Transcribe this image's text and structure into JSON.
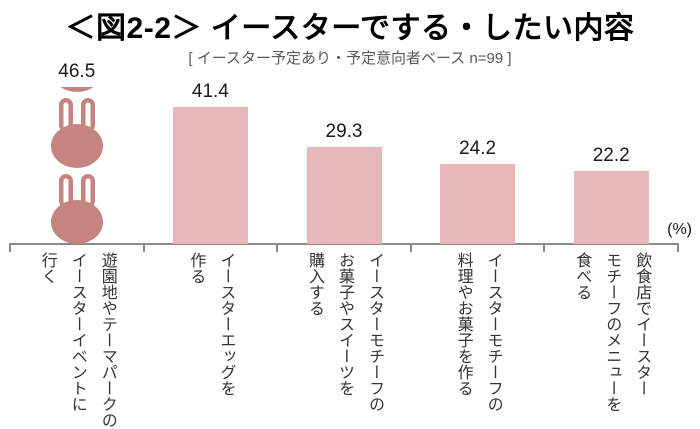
{
  "header": {
    "title": "＜図2-2＞ イースターでする・したい内容",
    "subtitle": "[ イースター予定あり・予定意向者ベース n=99 ]"
  },
  "chart_data": {
    "type": "bar",
    "title": "＜図2-2＞ イースターでする・したい内容",
    "subtitle": "[ イースター予定あり・予定意向者ベース n=99 ]",
    "unit_label": "(%)",
    "legend": "none",
    "y_axis_visible": false,
    "ylim": [
      0,
      50
    ],
    "categories": [
      {
        "label": "遊園地やテーマパークのイースターイベントに行く",
        "lines": [
          "遊園地やテーマパークの",
          "イースターイベントに",
          "行く"
        ]
      },
      {
        "label": "イースターエッグを作る",
        "lines": [
          "イースターエッグを",
          "作る"
        ]
      },
      {
        "label": "イースターモチーフのお菓子やスイーツを購入する",
        "lines": [
          "イースターモチーフの",
          "お菓子やスイーツを",
          "購入する"
        ]
      },
      {
        "label": "イースターモチーフの料理やお菓子を作る",
        "lines": [
          "イースターモチーフの",
          "料理やお菓子を作る"
        ]
      },
      {
        "label": "飲食店でイースターモチーフのメニューを食べる",
        "lines": [
          "飲食店でイースター",
          "モチーフのメニューを",
          "食べる"
        ]
      }
    ],
    "values": [
      46.5,
      41.4,
      29.3,
      24.2,
      22.2
    ],
    "value_labels": [
      "46.5",
      "41.4",
      "29.3",
      "24.2",
      "22.2"
    ],
    "first_bar_rendered_as": "rabbit-pictogram",
    "colors": {
      "bar": "#e8b7ba",
      "pictogram": "#c5847f",
      "axis": "#8a8a8a",
      "value_text": "#1a1a1a",
      "category_text": "#333333",
      "subtitle_text": "#595959"
    }
  }
}
